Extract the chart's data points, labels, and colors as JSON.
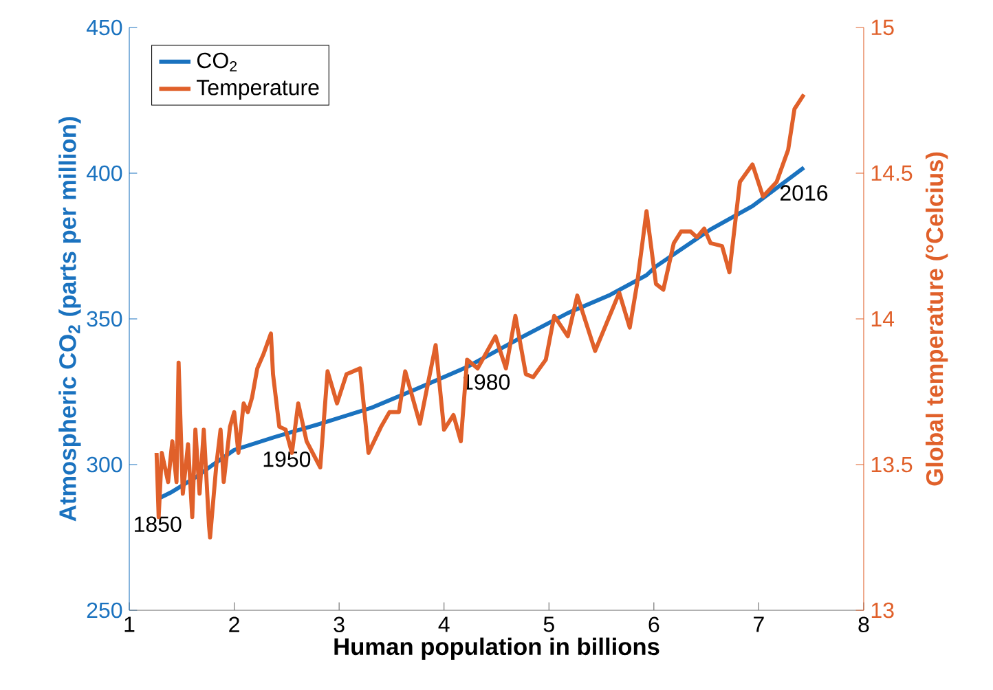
{
  "chart_data": {
    "type": "line",
    "xlabel": "**Human population in billions**",
    "ylabel": "**Atmospheric CO$_{2}$ (parts per million)**",
    "y2label": "**Global temperature (°Celcius)**",
    "xlim": [
      1,
      8
    ],
    "xticks": [
      1,
      2,
      3,
      4,
      5,
      6,
      7,
      8
    ],
    "ylim": [
      250,
      450
    ],
    "yticks": [
      250,
      300,
      350,
      400,
      450
    ],
    "y2lim": [
      13,
      15
    ],
    "y2ticks": [
      13,
      13.5,
      14,
      14.5,
      15
    ],
    "legend": "top left",
    "series": [
      {
        "name": "CO$_{2}$",
        "color": "#1a72bf",
        "x": [
          1.27,
          1.4,
          1.64,
          1.8,
          2.0,
          2.39,
          2.82,
          3.31,
          3.74,
          4.22,
          4.75,
          5.18,
          5.57,
          5.93,
          6.02,
          6.54,
          6.94,
          7.43
        ],
        "values": [
          288.2,
          290.5,
          295.8,
          300,
          305,
          309.5,
          314,
          319.5,
          326,
          333.5,
          343.9,
          352,
          358,
          365,
          368,
          380.7,
          388.7,
          401.9
        ]
      },
      {
        "name": "Temperature",
        "color": "#e0602a",
        "axis": "y2",
        "x": [
          1.26,
          1.28,
          1.31,
          1.37,
          1.41,
          1.45,
          1.47,
          1.51,
          1.56,
          1.6,
          1.63,
          1.67,
          1.71,
          1.76,
          1.77,
          1.83,
          1.87,
          1.9,
          1.96,
          2.0,
          2.04,
          2.09,
          2.13,
          2.17,
          2.22,
          2.28,
          2.35,
          2.37,
          2.43,
          2.49,
          2.55,
          2.61,
          2.69,
          2.82,
          2.89,
          2.98,
          3.07,
          3.2,
          3.28,
          3.4,
          3.48,
          3.57,
          3.63,
          3.77,
          3.92,
          4.0,
          4.09,
          4.16,
          4.22,
          4.32,
          4.49,
          4.59,
          4.68,
          4.78,
          4.85,
          4.97,
          5.05,
          5.18,
          5.27,
          5.44,
          5.67,
          5.77,
          5.84,
          5.93,
          6.02,
          6.09,
          6.19,
          6.26,
          6.35,
          6.41,
          6.48,
          6.54,
          6.65,
          6.72,
          6.82,
          6.94,
          7.04,
          7.17,
          7.28,
          7.34,
          7.43
        ],
        "values": [
          13.54,
          13.32,
          13.54,
          13.44,
          13.58,
          13.44,
          13.85,
          13.4,
          13.57,
          13.32,
          13.62,
          13.4,
          13.62,
          13.29,
          13.25,
          13.5,
          13.62,
          13.44,
          13.63,
          13.68,
          13.54,
          13.71,
          13.68,
          13.73,
          13.83,
          13.88,
          13.95,
          13.81,
          13.63,
          13.62,
          13.54,
          13.71,
          13.58,
          13.49,
          13.82,
          13.71,
          13.81,
          13.83,
          13.54,
          13.63,
          13.68,
          13.68,
          13.82,
          13.64,
          13.91,
          13.62,
          13.67,
          13.58,
          13.86,
          13.83,
          13.94,
          13.83,
          14.01,
          13.81,
          13.8,
          13.86,
          14.01,
          13.94,
          14.08,
          13.89,
          14.09,
          13.97,
          14.12,
          14.37,
          14.12,
          14.1,
          14.26,
          14.3,
          14.3,
          14.28,
          14.31,
          14.26,
          14.25,
          14.16,
          14.47,
          14.53,
          14.42,
          14.47,
          14.58,
          14.72,
          14.77
        ]
      }
    ],
    "annotations": [
      {
        "text": "1850",
        "x": 1.27,
        "y": 288.2
      },
      {
        "text": "1950",
        "x": 2.5,
        "y": 310.5
      },
      {
        "text": "1980",
        "x": 4.4,
        "y": 337
      },
      {
        "text": "2016",
        "x": 7.43,
        "y": 401.9
      }
    ]
  }
}
